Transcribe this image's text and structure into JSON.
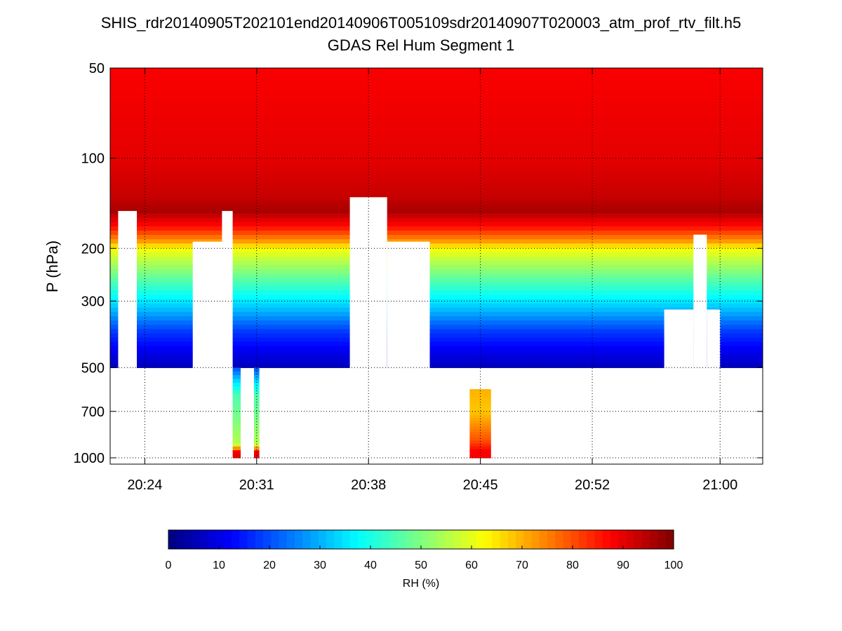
{
  "chart_data": {
    "type": "heatmap",
    "title": "SHIS_rdr20140905T202101end20140906T005109sdr20140907T020003_atm_prof_rtv_filt.h5",
    "subtitle": "GDAS Rel Hum Segment 1",
    "xlabel": "",
    "ylabel": "P (hPa)",
    "y_scale": "log",
    "y_reversed": true,
    "ylim": [
      1050,
      50
    ],
    "xlim": [
      "20:21:50",
      "21:02:40"
    ],
    "x_ticks": [
      "20:24",
      "20:31",
      "20:38",
      "20:45",
      "20:52",
      "21:00"
    ],
    "y_ticks": [
      50,
      100,
      200,
      300,
      500,
      700,
      1000
    ],
    "grid": true,
    "colorbar": {
      "label": "RH (%)",
      "range": [
        0,
        100
      ],
      "ticks": [
        0,
        10,
        20,
        30,
        40,
        50,
        60,
        70,
        80,
        90,
        100
      ],
      "colormap": "jet",
      "placement": "bottom"
    },
    "profile": {
      "pressure_hPa": [
        50,
        100,
        135,
        150,
        170,
        190,
        200,
        240,
        280,
        320,
        380,
        450,
        500
      ],
      "rh_percent": [
        88,
        90,
        93,
        96,
        86,
        72,
        62,
        50,
        40,
        31,
        18,
        10,
        6
      ]
    },
    "gaps_no_data": [
      {
        "x": [
          "20:22:20",
          "20:23:30"
        ],
        "p_top": 150,
        "p_bottom": 1000
      },
      {
        "x": [
          "20:27:00",
          "20:28:50"
        ],
        "p_top": 190,
        "p_bottom": 1000
      },
      {
        "x": [
          "20:28:50",
          "20:29:30"
        ],
        "p_top": 150,
        "p_bottom": 1000
      },
      {
        "x": [
          "20:36:50",
          "20:39:10"
        ],
        "p_top": 135,
        "p_bottom": 1000
      },
      {
        "x": [
          "20:39:10",
          "20:41:50"
        ],
        "p_top": 190,
        "p_bottom": 1000
      },
      {
        "x": [
          "20:56:30",
          "20:58:20"
        ],
        "p_top": 320,
        "p_bottom": 1000
      },
      {
        "x": [
          "20:58:20",
          "20:59:10"
        ],
        "p_top": 180,
        "p_bottom": 1000
      },
      {
        "x": [
          "20:59:10",
          "21:00:00"
        ],
        "p_top": 320,
        "p_bottom": 1000
      }
    ],
    "low_level_columns": [
      {
        "x": [
          "20:29:30",
          "20:30:00"
        ],
        "p_top": 500,
        "p_bottom": 1000,
        "pressure_hPa": [
          500,
          560,
          620,
          900,
          960
        ],
        "rh_percent": [
          20,
          35,
          45,
          55,
          90
        ]
      },
      {
        "x": [
          "20:30:50",
          "20:31:10"
        ],
        "p_top": 500,
        "p_bottom": 1000,
        "pressure_hPa": [
          500,
          560,
          620,
          900,
          960
        ],
        "rh_percent": [
          20,
          35,
          45,
          55,
          90
        ]
      },
      {
        "x": [
          "20:44:20",
          "20:45:40"
        ],
        "p_top": 590,
        "p_bottom": 1000,
        "pressure_hPa": [
          590,
          700,
          800,
          880,
          950
        ],
        "rh_percent": [
          70,
          68,
          75,
          80,
          88
        ]
      }
    ]
  }
}
